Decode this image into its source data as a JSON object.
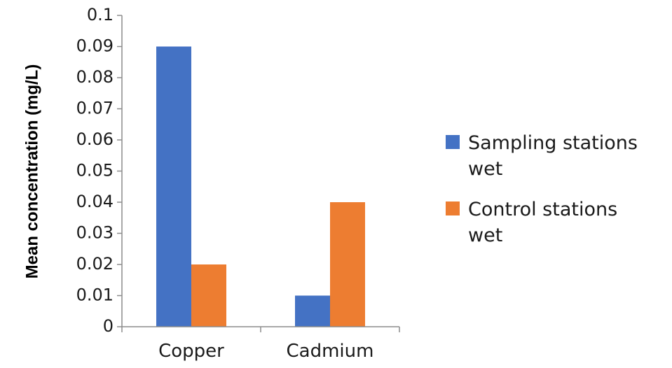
{
  "chart_data": {
    "type": "bar",
    "categories": [
      "Copper",
      "Cadmium"
    ],
    "series": [
      {
        "name": "Sampling stations wet",
        "legend_lines": [
          "Sampling stations",
          "wet"
        ],
        "values": [
          0.09,
          0.01
        ],
        "color": "#4472C4"
      },
      {
        "name": "Control stations wet",
        "legend_lines": [
          "Control stations",
          "wet"
        ],
        "values": [
          0.02,
          0.04
        ],
        "color": "#ED7D31"
      }
    ],
    "ylabel": "Mean concentration (mg/L)",
    "xlabel": "",
    "ylim": [
      0,
      0.1
    ],
    "yticks": [
      "0",
      "0.01",
      "0.02",
      "0.03",
      "0.04",
      "0.05",
      "0.06",
      "0.07",
      "0.08",
      "0.09",
      "0.1"
    ],
    "grid": false,
    "legend_position": "right"
  }
}
